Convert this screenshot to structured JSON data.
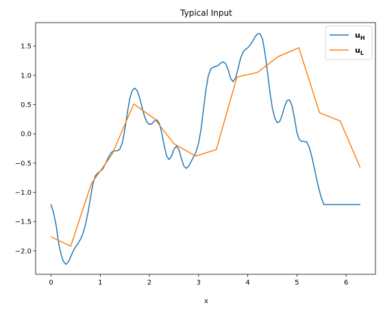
{
  "chart_data": {
    "type": "line",
    "title": "Typical Input",
    "xlabel": "x",
    "ylabel": "",
    "xlim": [
      -0.3142,
      6.5973
    ],
    "ylim": [
      -2.4,
      1.9
    ],
    "xticks": [
      0,
      1,
      2,
      3,
      4,
      5,
      6
    ],
    "xtick_labels": [
      "0",
      "1",
      "2",
      "3",
      "4",
      "5",
      "6"
    ],
    "yticks": [
      -2.0,
      -1.5,
      -1.0,
      -0.5,
      0.0,
      0.5,
      1.0,
      1.5
    ],
    "ytick_labels": [
      "−2.0",
      "−1.5",
      "−1.0",
      "−0.5",
      "0.0",
      "0.5",
      "1.0",
      "1.5"
    ],
    "grid": false,
    "legend_position": "top-right",
    "series": [
      {
        "name": "u",
        "subscript": "H",
        "color": "#1f77b4",
        "x": [
          0.0,
          0.05,
          0.1,
          0.15,
          0.2,
          0.25,
          0.3,
          0.35,
          0.4,
          0.45,
          0.5,
          0.55,
          0.6,
          0.65,
          0.7,
          0.75,
          0.8,
          0.85,
          0.9,
          0.95,
          1.0,
          1.05,
          1.1,
          1.15,
          1.2,
          1.25,
          1.3,
          1.35,
          1.4,
          1.45,
          1.5,
          1.55,
          1.6,
          1.65,
          1.7,
          1.75,
          1.8,
          1.85,
          1.9,
          1.95,
          2.0,
          2.05,
          2.1,
          2.15,
          2.2,
          2.25,
          2.3,
          2.35,
          2.4,
          2.45,
          2.5,
          2.55,
          2.6,
          2.65,
          2.7,
          2.75,
          2.8,
          2.85,
          2.9,
          2.95,
          3.0,
          3.05,
          3.1,
          3.15,
          3.2,
          3.25,
          3.3,
          3.35,
          3.4,
          3.45,
          3.5,
          3.55,
          3.6,
          3.65,
          3.7,
          3.75,
          3.8,
          3.85,
          3.9,
          3.95,
          4.0,
          4.05,
          4.1,
          4.15,
          4.2,
          4.25,
          4.3,
          4.35,
          4.4,
          4.45,
          4.5,
          4.55,
          4.6,
          4.65,
          4.7,
          4.75,
          4.8,
          4.85,
          4.9,
          4.95,
          5.0,
          5.05,
          5.1,
          5.15,
          5.2,
          5.25,
          5.3,
          5.35,
          5.4,
          5.45,
          5.5,
          5.55,
          5.6,
          5.65,
          5.7,
          5.75,
          5.8,
          5.85,
          5.9,
          5.95,
          6.0,
          6.05,
          6.1,
          6.15,
          6.2,
          6.25,
          6.283
        ],
        "y": [
          -1.21,
          -1.35,
          -1.55,
          -1.85,
          -2.05,
          -2.18,
          -2.23,
          -2.19,
          -2.1,
          -2.0,
          -1.93,
          -1.87,
          -1.8,
          -1.7,
          -1.55,
          -1.35,
          -1.1,
          -0.86,
          -0.72,
          -0.67,
          -0.64,
          -0.6,
          -0.52,
          -0.43,
          -0.35,
          -0.3,
          -0.29,
          -0.29,
          -0.26,
          -0.15,
          0.07,
          0.35,
          0.6,
          0.74,
          0.78,
          0.74,
          0.62,
          0.45,
          0.3,
          0.2,
          0.16,
          0.17,
          0.22,
          0.24,
          0.18,
          0.02,
          -0.2,
          -0.38,
          -0.44,
          -0.38,
          -0.26,
          -0.21,
          -0.27,
          -0.42,
          -0.55,
          -0.59,
          -0.55,
          -0.47,
          -0.39,
          -0.31,
          -0.16,
          0.08,
          0.42,
          0.76,
          1.0,
          1.11,
          1.14,
          1.15,
          1.17,
          1.21,
          1.23,
          1.2,
          1.1,
          0.95,
          0.89,
          0.95,
          1.1,
          1.28,
          1.39,
          1.44,
          1.47,
          1.52,
          1.58,
          1.66,
          1.71,
          1.71,
          1.62,
          1.38,
          1.06,
          0.72,
          0.44,
          0.27,
          0.19,
          0.21,
          0.32,
          0.47,
          0.57,
          0.58,
          0.48,
          0.27,
          0.02,
          -0.1,
          -0.13,
          -0.13,
          -0.14,
          -0.23,
          -0.38,
          -0.57,
          -0.77,
          -0.95,
          -1.1,
          -1.21,
          -1.21,
          -1.21,
          -1.21,
          -1.21,
          -1.21,
          -1.21,
          -1.21,
          -1.21,
          -1.21,
          -1.21,
          -1.21,
          -1.21,
          -1.21,
          -1.21,
          -1.21
        ]
      },
      {
        "name": "u",
        "subscript": "L",
        "color": "#ff7f0e",
        "x": [
          0.0,
          0.4,
          0.82,
          1.24,
          1.68,
          2.1,
          2.5,
          2.94,
          3.36,
          3.78,
          4.2,
          4.62,
          5.04,
          5.46,
          5.88,
          6.283
        ],
        "y": [
          -1.76,
          -1.92,
          -0.85,
          -0.35,
          0.51,
          0.26,
          -0.17,
          -0.38,
          -0.27,
          0.97,
          1.05,
          1.32,
          1.47,
          0.36,
          0.22,
          -0.57
        ]
      }
    ]
  }
}
